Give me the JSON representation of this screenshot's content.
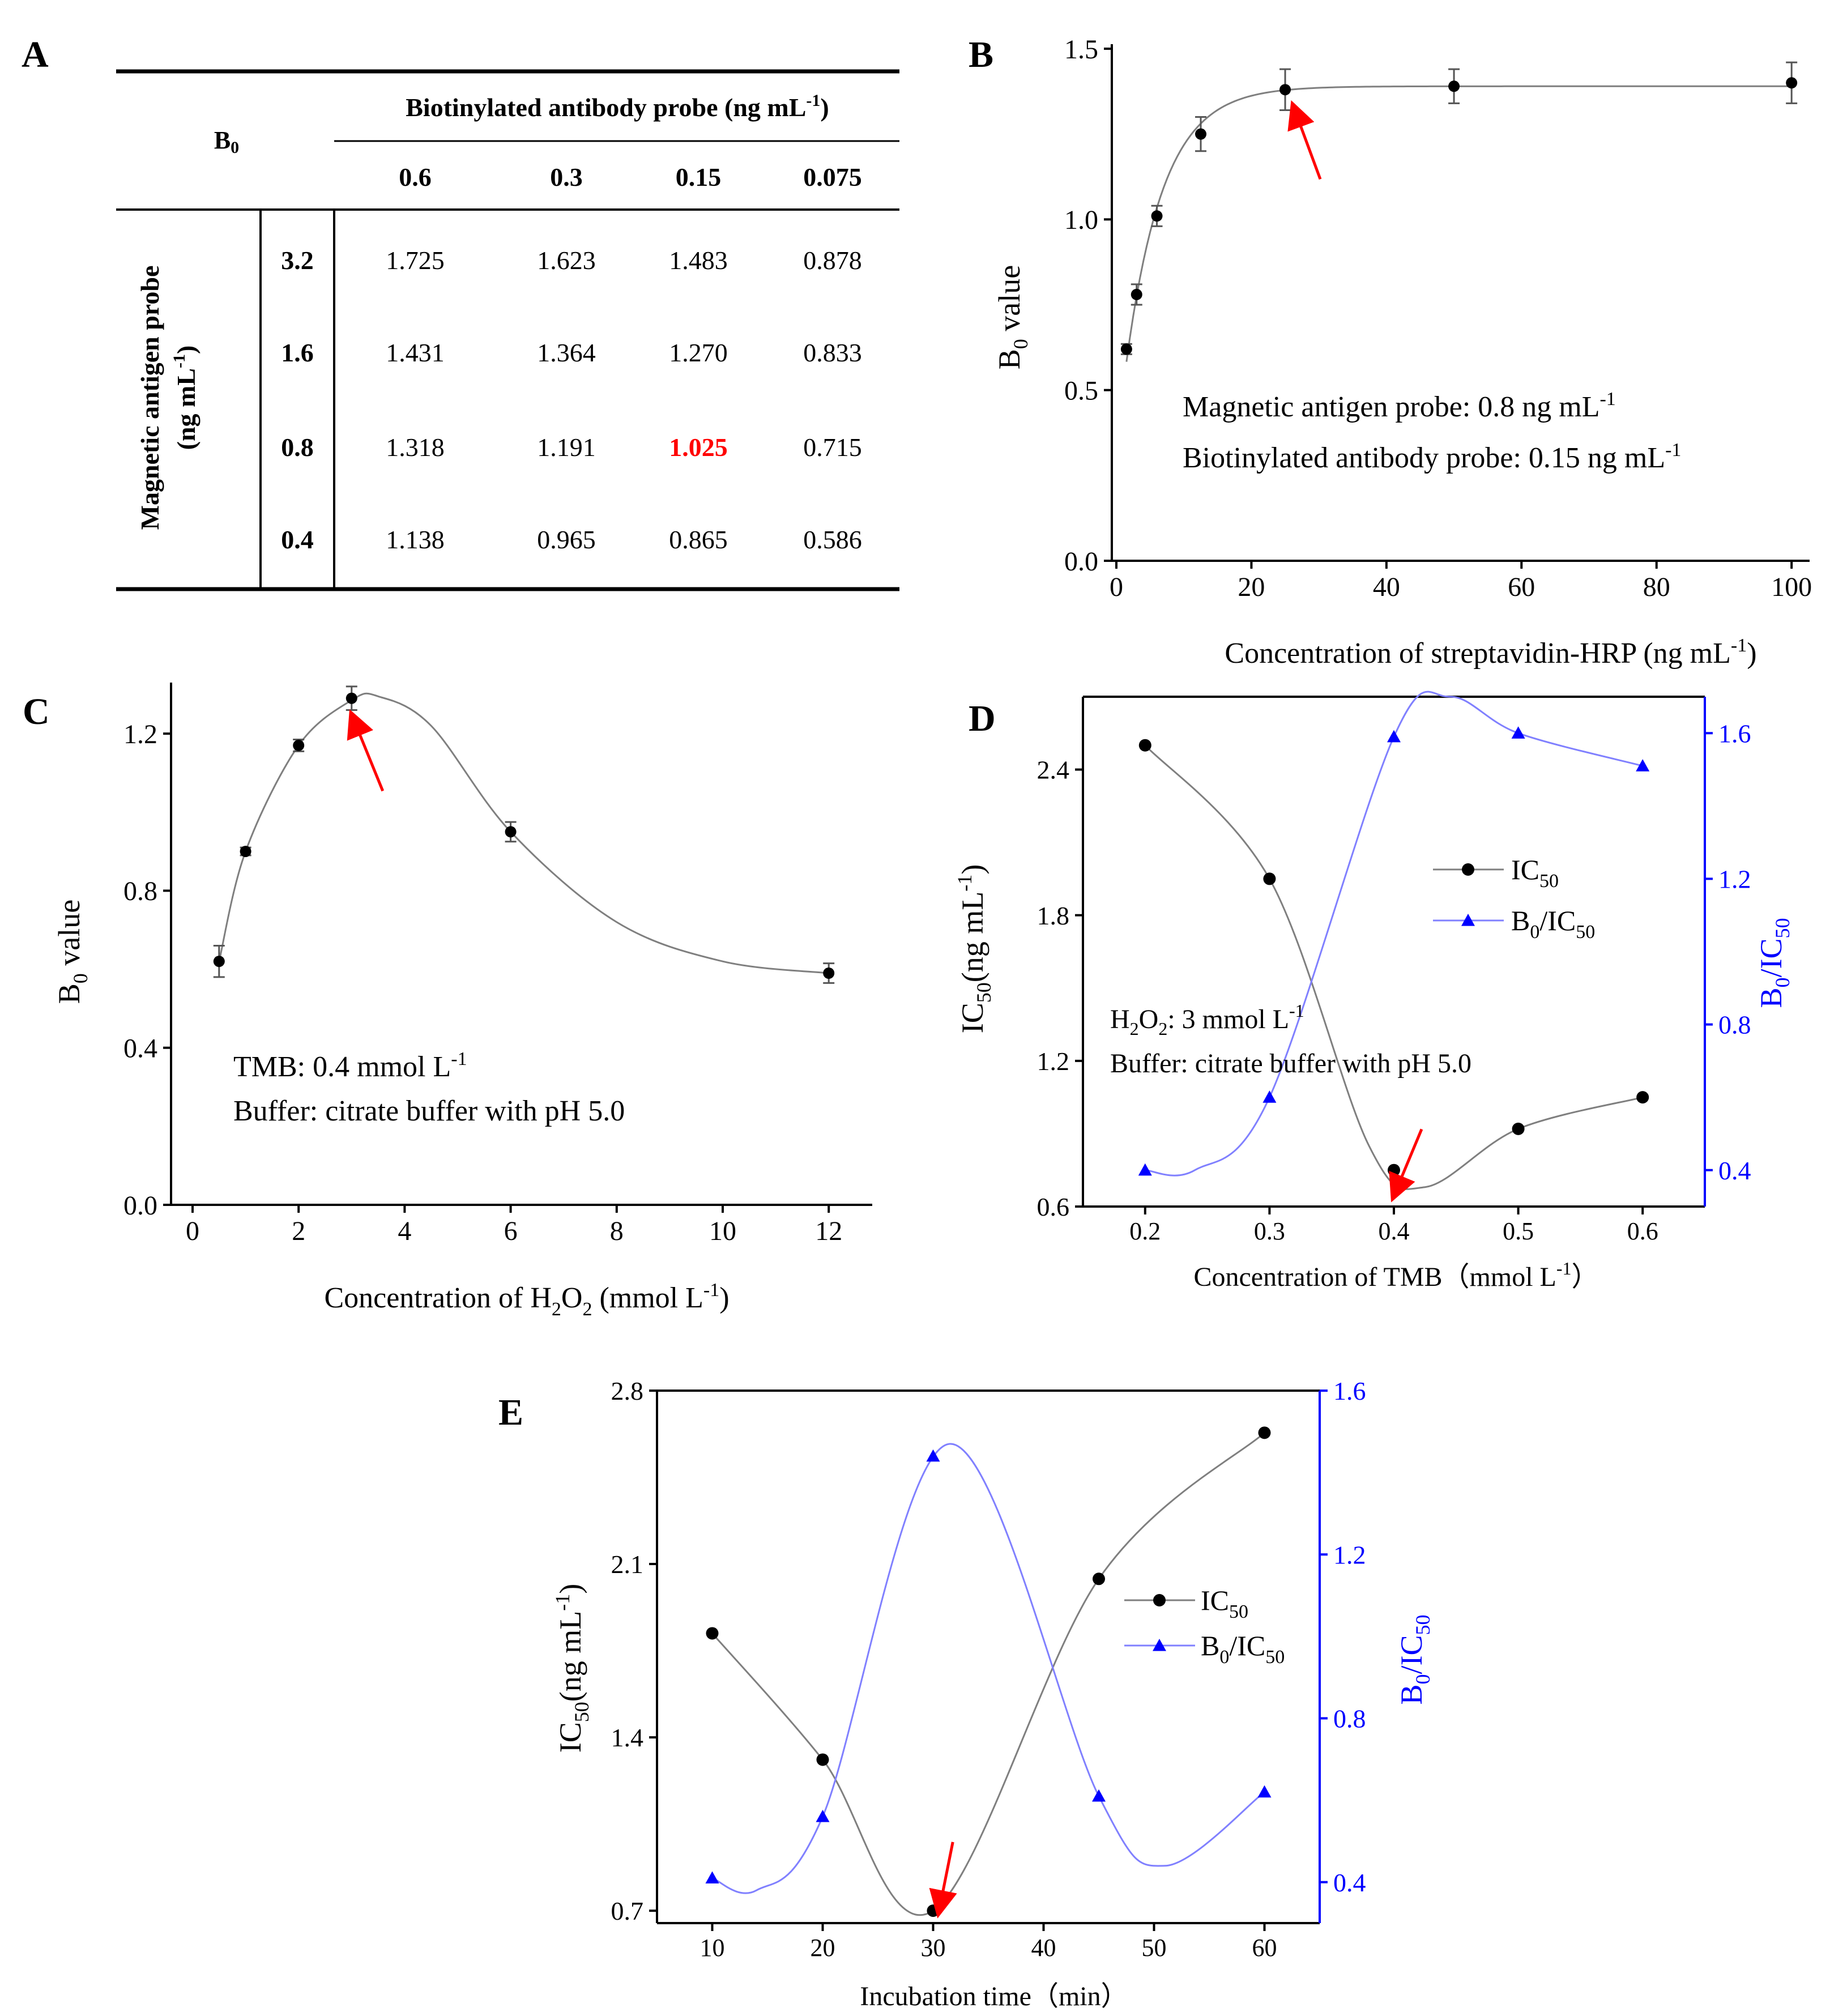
{
  "chart_data": [
    {
      "panel": "A",
      "type": "table",
      "corner_header": "B",
      "corner_header_sub": "0",
      "column_group_header": "Biotinylated antibody probe (ng mL",
      "column_group_header_sup": "-1",
      "column_group_header_tail": ")",
      "columns": [
        "0.6",
        "0.3",
        "0.15",
        "0.075"
      ],
      "row_group_header_line1": "Magnetic antigen probe",
      "row_group_header_line2": "(ng mL",
      "row_group_header_line2_sup": "-1",
      "row_group_header_line2_tail": ")",
      "rows": [
        {
          "label": "3.2",
          "values": [
            "1.725",
            "1.623",
            "1.483",
            "0.878"
          ]
        },
        {
          "label": "1.6",
          "values": [
            "1.431",
            "1.364",
            "1.270",
            "0.833"
          ]
        },
        {
          "label": "0.8",
          "values": [
            "1.318",
            "1.191",
            "1.025",
            "0.715"
          ]
        },
        {
          "label": "0.4",
          "values": [
            "1.138",
            "0.965",
            "0.865",
            "0.586"
          ]
        }
      ],
      "highlight": {
        "row": 2,
        "col": 2,
        "color": "#ff0000"
      }
    },
    {
      "panel": "B",
      "type": "scatter",
      "x": [
        1.5,
        3,
        6,
        12.5,
        25,
        50,
        100
      ],
      "y": [
        0.62,
        0.78,
        1.01,
        1.25,
        1.38,
        1.39,
        1.4
      ],
      "yerr": [
        0.015,
        0.03,
        0.03,
        0.05,
        0.06,
        0.05,
        0.06
      ],
      "fit_curve": "y = 1.39 - 1.06*exp(-x/5.5)",
      "xlim": [
        0,
        102
      ],
      "ylim": [
        0,
        1.5
      ],
      "xticks": [
        "0",
        "20",
        "40",
        "60",
        "80",
        "100"
      ],
      "yticks": [
        "0.0",
        "0.5",
        "1.0",
        "1.5"
      ],
      "xlabel": "Concentration of streptavidin-HRP (ng mL",
      "xlabel_sup": "-1",
      "xlabel_tail": ")",
      "ylabel": "B",
      "ylabel_sub": "0",
      "ylabel_tail": " value",
      "annotation_line1": "Magnetic antigen probe: 0.8 ng mL",
      "annotation_line1_sup": "-1",
      "annotation_line2": "Biotinylated antibody probe: 0.15 ng mL",
      "annotation_line2_sup": "-1",
      "arrow_at": {
        "x": 25,
        "y": 1.38
      },
      "arrow_color": "#ff0000"
    },
    {
      "panel": "C",
      "type": "scatter",
      "x": [
        0.5,
        1,
        2,
        3,
        6,
        12
      ],
      "y": [
        0.62,
        0.9,
        1.17,
        1.29,
        0.95,
        0.59
      ],
      "yerr": [
        0.04,
        0.01,
        0.015,
        0.03,
        0.025,
        0.025
      ],
      "xlim": [
        0,
        12.5
      ],
      "ylim": [
        0,
        1.3
      ],
      "xticks": [
        "0",
        "2",
        "4",
        "6",
        "8",
        "10",
        "12"
      ],
      "yticks": [
        "0.0",
        "0.4",
        "0.8",
        "1.2"
      ],
      "xlabel": "Concentration of H",
      "xlabel_sub1": "2",
      "xlabel_mid": "O",
      "xlabel_sub2": "2",
      "xlabel_tail": " (mmol L",
      "xlabel_sup": "-1",
      "xlabel_end": ")",
      "ylabel": "B",
      "ylabel_sub": "0",
      "ylabel_tail": " value",
      "annotation_line1": "TMB: 0.4 mmol L",
      "annotation_line1_sup": "-1",
      "annotation_line2": "Buffer: citrate buffer with pH 5.0",
      "arrow_at": {
        "x": 3,
        "y": 1.22
      },
      "arrow_color": "#ff0000"
    },
    {
      "panel": "D",
      "type": "line",
      "x": [
        0.2,
        0.3,
        0.4,
        0.5,
        0.6
      ],
      "series": [
        {
          "name": "IC",
          "name_sub": "50",
          "axis": "left",
          "values": [
            2.5,
            1.95,
            0.75,
            0.92,
            1.05
          ],
          "color": "#000000",
          "marker": "circle"
        },
        {
          "name": "B",
          "name_sub": "0",
          "name_tail": "/IC",
          "name_tail_sub": "50",
          "axis": "right",
          "values": [
            0.4,
            0.6,
            1.59,
            1.6,
            1.51
          ],
          "color": "#0000ff",
          "marker": "triangle"
        }
      ],
      "xlim": [
        0.15,
        0.65
      ],
      "ylim_left": [
        0.6,
        2.7
      ],
      "ylim_right": [
        0.3,
        1.7
      ],
      "xticks": [
        "0.2",
        "0.3",
        "0.4",
        "0.5",
        "0.6"
      ],
      "yticks_left": [
        "0.6",
        "1.2",
        "1.8",
        "2.4"
      ],
      "yticks_right": [
        "0.4",
        "0.8",
        "1.2",
        "1.6"
      ],
      "xlabel": "Concentration of TMB（mmol L",
      "xlabel_sup": "-1",
      "xlabel_tail": "）",
      "ylabel_left": "IC",
      "ylabel_left_sub": "50",
      "ylabel_left_tail": "(ng mL",
      "ylabel_left_sup": "-1",
      "ylabel_left_end": ")",
      "ylabel_right": "B",
      "ylabel_right_sub": "0",
      "ylabel_right_tail": "/IC",
      "ylabel_right_sub2": "50",
      "annotation_line1_a": "H",
      "annotation_line1_sub1": "2",
      "annotation_line1_b": "O",
      "annotation_line1_sub2": "2",
      "annotation_line1_c": ": 3 mmol L",
      "annotation_line1_sup": "-1",
      "annotation_line2": "Buffer: citrate buffer with pH 5.0",
      "arrow_at": {
        "x": 0.405,
        "y": 0.62
      },
      "arrow_color": "#ff0000"
    },
    {
      "panel": "E",
      "type": "line",
      "x": [
        10,
        20,
        30,
        45,
        60
      ],
      "series": [
        {
          "name": "IC",
          "name_sub": "50",
          "axis": "left",
          "values": [
            1.82,
            1.31,
            0.7,
            2.04,
            2.63
          ],
          "color": "#000000",
          "marker": "circle"
        },
        {
          "name": "B",
          "name_sub": "0",
          "name_tail": "/IC",
          "name_tail_sub": "50",
          "axis": "right",
          "values": [
            0.41,
            0.56,
            1.44,
            0.61,
            0.62
          ],
          "color": "#0000ff",
          "marker": "triangle"
        }
      ],
      "xlim": [
        5,
        65
      ],
      "ylim_left": [
        0.65,
        2.8
      ],
      "ylim_right": [
        0.3,
        1.6
      ],
      "xticks": [
        "10",
        "20",
        "30",
        "40",
        "50",
        "60"
      ],
      "yticks_left": [
        "0.7",
        "1.4",
        "2.1",
        "2.8"
      ],
      "yticks_right": [
        "0.4",
        "0.8",
        "1.2",
        "1.6"
      ],
      "xlabel": "Incubation time（min）",
      "ylabel_left": "IC",
      "ylabel_left_sub": "50",
      "ylabel_left_tail": "(ng mL",
      "ylabel_left_sup": "-1",
      "ylabel_left_end": ")",
      "ylabel_right": "B",
      "ylabel_right_sub": "0",
      "ylabel_right_tail": "/IC",
      "ylabel_right_sub2": "50",
      "arrow_at": {
        "x": 30.5,
        "y": 0.68
      },
      "arrow_color": "#ff0000"
    }
  ]
}
